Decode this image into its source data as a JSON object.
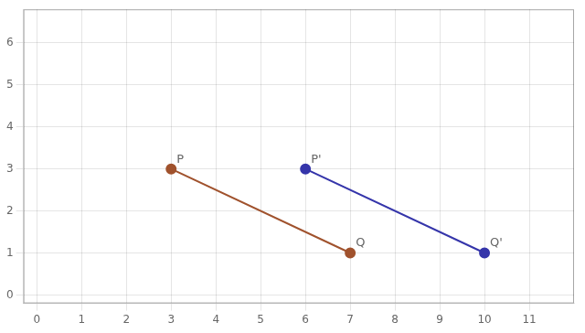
{
  "chart_data": {
    "type": "line",
    "series": [
      {
        "color": "#A0522D",
        "x": [
          3,
          7
        ],
        "values": [
          3,
          1
        ],
        "marker": "o"
      },
      {
        "color": "#3535AA",
        "x": [
          6,
          10
        ],
        "values": [
          3,
          1
        ],
        "marker": "o"
      }
    ],
    "annotations": [
      {
        "text": "P",
        "x": 3,
        "y": 3
      },
      {
        "text": "Q",
        "x": 7,
        "y": 1
      },
      {
        "text": "P'",
        "x": 6,
        "y": 3
      },
      {
        "text": "Q'",
        "x": 10,
        "y": 1
      }
    ],
    "xlim": [
      -0.3,
      12
    ],
    "ylim": [
      -0.2,
      6.8
    ],
    "xticks": [
      0,
      1,
      2,
      3,
      4,
      5,
      6,
      7,
      8,
      9,
      10,
      11
    ],
    "yticks": [
      0,
      1,
      2,
      3,
      4,
      5,
      6
    ],
    "grid": true
  }
}
